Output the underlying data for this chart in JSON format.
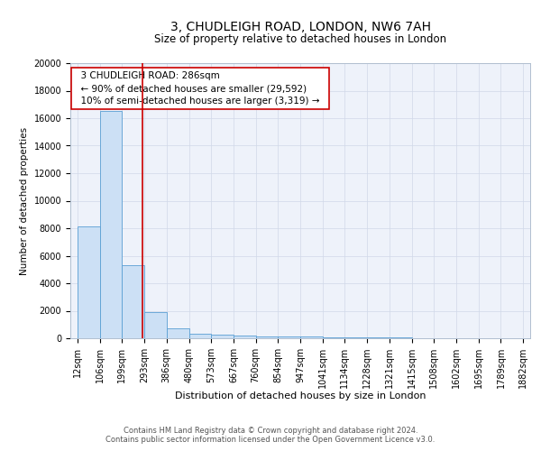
{
  "title": "3, CHUDLEIGH ROAD, LONDON, NW6 7AH",
  "subtitle": "Size of property relative to detached houses in London",
  "xlabel": "Distribution of detached houses by size in London",
  "ylabel": "Number of detached properties",
  "bin_edges": [
    12,
    106,
    199,
    293,
    386,
    480,
    573,
    667,
    760,
    854,
    947,
    1041,
    1134,
    1228,
    1321,
    1415,
    1508,
    1602,
    1695,
    1789,
    1882
  ],
  "bin_heights": [
    8100,
    16500,
    5300,
    1900,
    700,
    300,
    250,
    200,
    150,
    150,
    100,
    80,
    60,
    50,
    40,
    30,
    20,
    15,
    10,
    8
  ],
  "bar_color": "#cce0f5",
  "bar_edge_color": "#5a9fd4",
  "bar_linewidth": 0.6,
  "vline_x": 286,
  "vline_color": "#cc0000",
  "vline_linewidth": 1.2,
  "ylim": [
    0,
    20000
  ],
  "yticks": [
    0,
    2000,
    4000,
    6000,
    8000,
    10000,
    12000,
    14000,
    16000,
    18000,
    20000
  ],
  "annotation_text": "  3 CHUDLEIGH ROAD: 286sqm  \n  ← 90% of detached houses are smaller (29,592)  \n  10% of semi-detached houses are larger (3,319) →  ",
  "annotation_box_color": "white",
  "annotation_edge_color": "#cc0000",
  "grid_color": "#d0d8e8",
  "bg_color": "#eef2fa",
  "footer_line1": "Contains HM Land Registry data © Crown copyright and database right 2024.",
  "footer_line2": "Contains public sector information licensed under the Open Government Licence v3.0.",
  "title_fontsize": 10,
  "subtitle_fontsize": 8.5,
  "xlabel_fontsize": 8,
  "ylabel_fontsize": 7.5,
  "tick_fontsize": 7,
  "annotation_fontsize": 7.5,
  "footer_fontsize": 6
}
